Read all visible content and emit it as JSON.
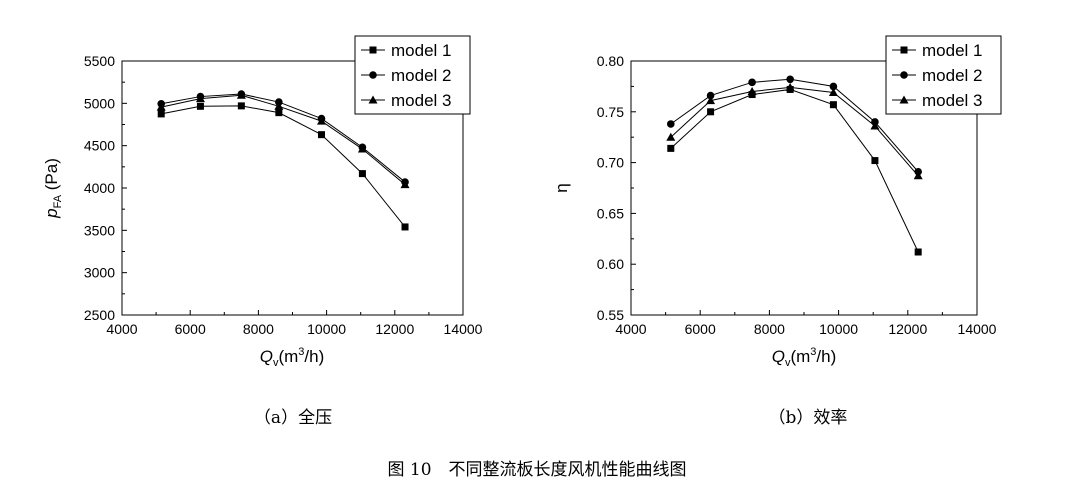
{
  "chart_data": [
    {
      "type": "line",
      "xlabel": "Q",
      "xlabel_sub": "v",
      "xlabel_unit_pre": "(m",
      "xlabel_unit_sup": "3",
      "xlabel_unit_post": "/h)",
      "ylabel": "p",
      "ylabel_sub": "FA",
      "ylabel_unit": " (Pa)",
      "xlim": [
        4000,
        14000
      ],
      "ylim": [
        2500,
        5500
      ],
      "xticks": [
        "4000",
        "6000",
        "8000",
        "10000",
        "12000",
        "14000"
      ],
      "yticks": [
        "2500",
        "3000",
        "3500",
        "4000",
        "4500",
        "5000",
        "5500"
      ],
      "legend_position": "top-right",
      "series": [
        {
          "name": "model 1",
          "marker": "square",
          "x": [
            5150,
            6300,
            7500,
            8600,
            9850,
            11050,
            12300
          ],
          "y": [
            4875,
            4965,
            4970,
            4890,
            4630,
            4170,
            3540
          ]
        },
        {
          "name": "model 2",
          "marker": "circle",
          "x": [
            5150,
            6300,
            7500,
            8600,
            9850,
            11050,
            12300
          ],
          "y": [
            4995,
            5080,
            5110,
            5015,
            4820,
            4480,
            4070
          ]
        },
        {
          "name": "model 3",
          "marker": "triangle",
          "x": [
            5150,
            6300,
            7500,
            8600,
            9850,
            11050,
            12300
          ],
          "y": [
            4955,
            5055,
            5095,
            4965,
            4790,
            4460,
            4040
          ]
        }
      ]
    },
    {
      "type": "line",
      "xlabel": "Q",
      "xlabel_sub": "v",
      "xlabel_unit_pre": "(m",
      "xlabel_unit_sup": "3",
      "xlabel_unit_post": "/h)",
      "ylabel": "η",
      "xlim": [
        4000,
        14000
      ],
      "ylim": [
        0.55,
        0.8
      ],
      "xticks": [
        "4000",
        "6000",
        "8000",
        "10000",
        "12000",
        "14000"
      ],
      "yticks": [
        "0.55",
        "0.60",
        "0.65",
        "0.70",
        "0.75",
        "0.80"
      ],
      "legend_position": "top-right",
      "series": [
        {
          "name": "model 1",
          "marker": "square",
          "x": [
            5150,
            6300,
            7500,
            8600,
            9850,
            11050,
            12300
          ],
          "y": [
            0.714,
            0.75,
            0.767,
            0.772,
            0.757,
            0.702,
            0.612
          ]
        },
        {
          "name": "model 2",
          "marker": "circle",
          "x": [
            5150,
            6300,
            7500,
            8600,
            9850,
            11050,
            12300
          ],
          "y": [
            0.738,
            0.766,
            0.779,
            0.782,
            0.775,
            0.74,
            0.691
          ]
        },
        {
          "name": "model 3",
          "marker": "triangle",
          "x": [
            5150,
            6300,
            7500,
            8600,
            9850,
            11050,
            12300
          ],
          "y": [
            0.725,
            0.761,
            0.77,
            0.774,
            0.769,
            0.736,
            0.687
          ]
        }
      ]
    }
  ],
  "captions": {
    "sub_a": "（a）全压",
    "sub_b": "（b）效率",
    "figure": "图 10　不同整流板长度风机性能曲线图"
  }
}
